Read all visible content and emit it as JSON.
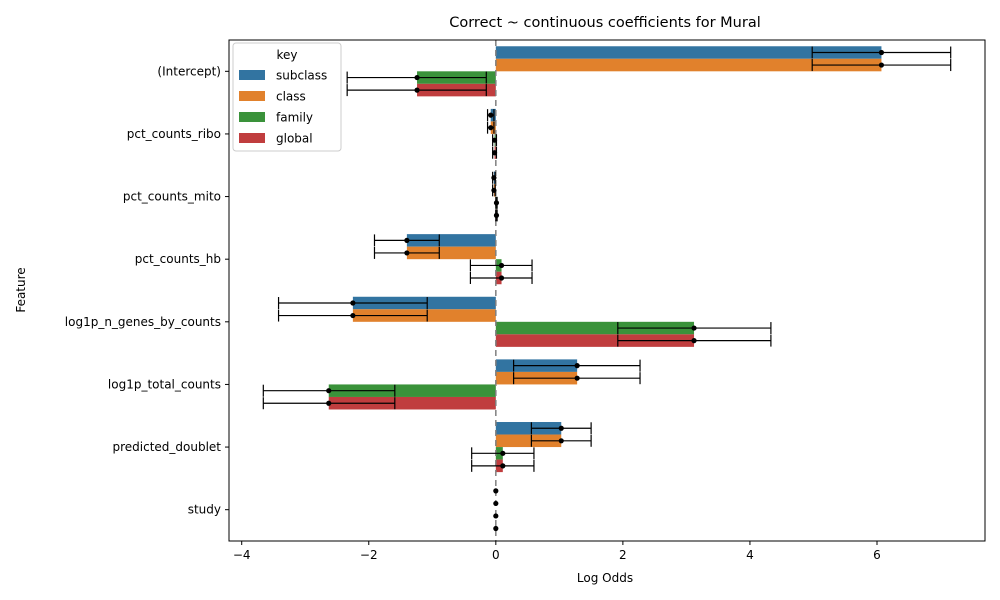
{
  "chart_data": {
    "type": "bar",
    "orientation": "horizontal",
    "title": "Correct ~ continuous coefficients for Mural",
    "xlabel": "Log Odds",
    "ylabel": "Feature",
    "xlim": [
      -4.2,
      7.7
    ],
    "xticks": [
      -4,
      -2,
      0,
      2,
      4,
      6
    ],
    "xtick_labels": [
      "−4",
      "−2",
      "0",
      "2",
      "4",
      "6"
    ],
    "reference_line": 0,
    "legend": {
      "title": "key",
      "position": "top-left"
    },
    "categories": [
      "(Intercept)",
      "pct_counts_ribo",
      "pct_counts_mito",
      "pct_counts_hb",
      "log1p_n_genes_by_counts",
      "log1p_total_counts",
      "predicted_doublet",
      "study"
    ],
    "series": [
      {
        "name": "subclass",
        "color": "#3274a1",
        "values": [
          6.07,
          -0.08,
          -0.03,
          -1.4,
          -2.25,
          1.28,
          1.03,
          0.0
        ],
        "ci": [
          [
            4.98,
            7.16
          ],
          [
            -0.13,
            -0.03
          ],
          [
            -0.05,
            -0.01
          ],
          [
            -1.91,
            -0.89
          ],
          [
            -3.42,
            -1.08
          ],
          [
            0.28,
            2.27
          ],
          [
            0.56,
            1.5
          ],
          [
            0.0,
            0.0
          ]
        ]
      },
      {
        "name": "class",
        "color": "#e1812c",
        "values": [
          6.07,
          -0.08,
          -0.03,
          -1.4,
          -2.25,
          1.28,
          1.03,
          0.0
        ],
        "ci": [
          [
            4.98,
            7.16
          ],
          [
            -0.13,
            -0.03
          ],
          [
            -0.05,
            -0.01
          ],
          [
            -1.91,
            -0.89
          ],
          [
            -3.42,
            -1.08
          ],
          [
            0.28,
            2.27
          ],
          [
            0.56,
            1.5
          ],
          [
            0.0,
            0.0
          ]
        ]
      },
      {
        "name": "family",
        "color": "#3a923a",
        "values": [
          -1.24,
          -0.02,
          0.01,
          0.09,
          3.12,
          -2.63,
          0.11,
          0.0
        ],
        "ci": [
          [
            -2.34,
            -0.15
          ],
          [
            -0.05,
            0.01
          ],
          [
            0.0,
            0.02
          ],
          [
            -0.4,
            0.57
          ],
          [
            1.92,
            4.33
          ],
          [
            -3.66,
            -1.59
          ],
          [
            -0.38,
            0.6
          ],
          [
            0.0,
            0.0
          ]
        ]
      },
      {
        "name": "global",
        "color": "#c03d3e",
        "values": [
          -1.24,
          -0.02,
          0.01,
          0.09,
          3.12,
          -2.63,
          0.11,
          0.0
        ],
        "ci": [
          [
            -2.34,
            -0.15
          ],
          [
            -0.05,
            0.01
          ],
          [
            0.0,
            0.02
          ],
          [
            -0.4,
            0.57
          ],
          [
            1.92,
            4.33
          ],
          [
            -3.66,
            -1.59
          ],
          [
            -0.38,
            0.6
          ],
          [
            0.0,
            0.0
          ]
        ]
      }
    ]
  }
}
